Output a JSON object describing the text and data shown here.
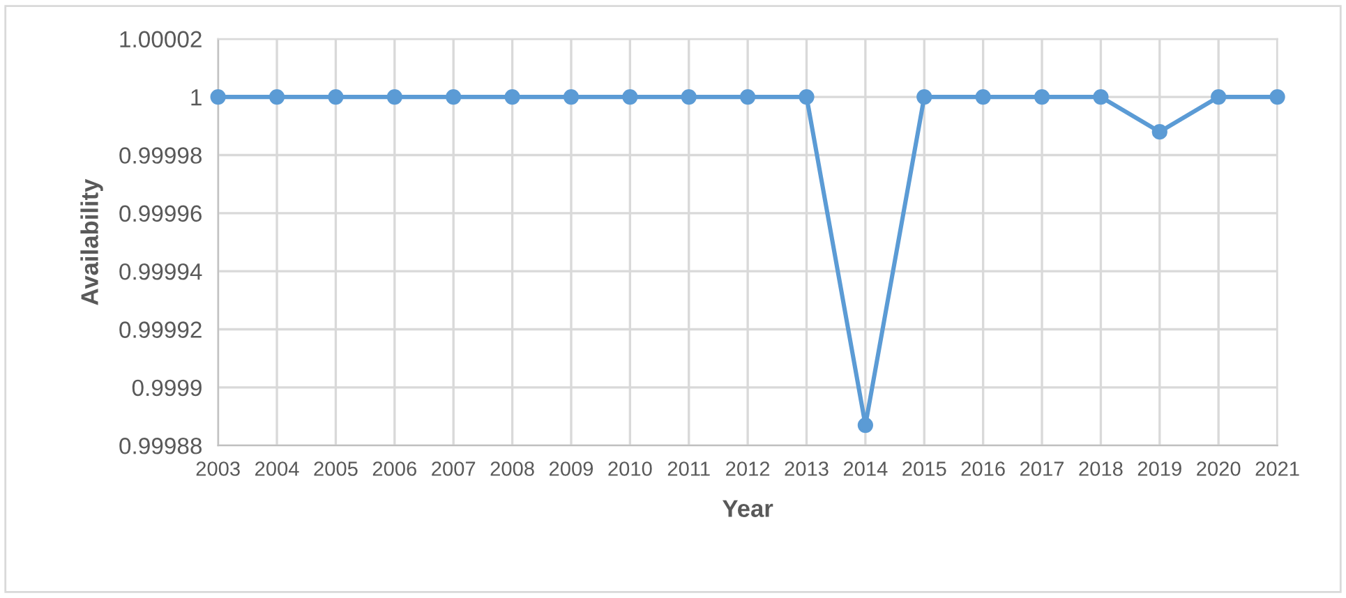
{
  "chart_data": {
    "type": "line",
    "xlabel": "Year",
    "ylabel": "Availability",
    "categories": [
      "2003",
      "2004",
      "2005",
      "2006",
      "2007",
      "2008",
      "2009",
      "2010",
      "2011",
      "2012",
      "2013",
      "2014",
      "2015",
      "2016",
      "2017",
      "2018",
      "2019",
      "2020",
      "2021"
    ],
    "series": [
      {
        "color": "#5b9bd5",
        "values": [
          1,
          1,
          1,
          1,
          1,
          1,
          1,
          1,
          1,
          1,
          1,
          0.999887,
          1,
          1,
          1,
          1,
          0.999988,
          1,
          1
        ]
      }
    ],
    "ylim": [
      0.99988,
      1.00002
    ],
    "yticks": [
      0.99988,
      0.9999,
      0.99992,
      0.99994,
      0.99996,
      0.99998,
      1,
      1.00002
    ],
    "grid": true,
    "marker": "circle",
    "line_style": "solid",
    "legend": false
  }
}
